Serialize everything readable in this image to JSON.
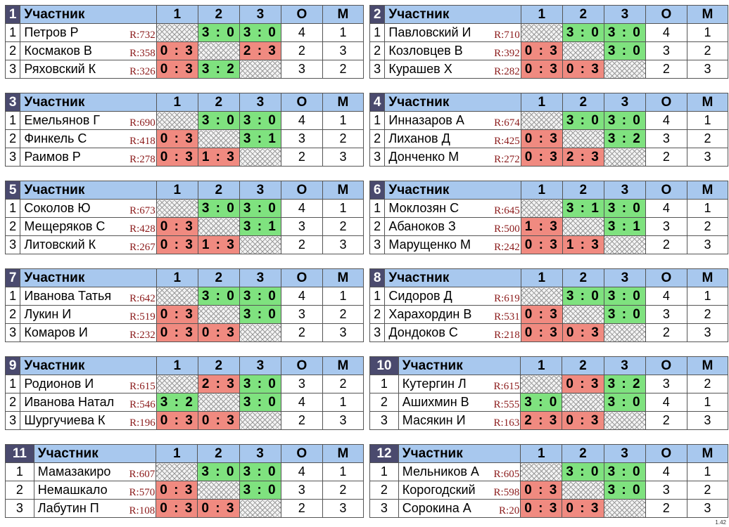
{
  "header": {
    "participant": "Участник",
    "cols": [
      "1",
      "2",
      "3"
    ],
    "points": "О",
    "place": "М"
  },
  "footer_tag": "1.42",
  "groups": [
    {
      "number": "1",
      "players": [
        {
          "idx": "1",
          "name": "Петров Р",
          "rating": "R:732",
          "scores": [
            "",
            "3 : 0",
            "3 : 0"
          ],
          "points": "4",
          "place": "1"
        },
        {
          "idx": "2",
          "name": "Космаков В",
          "rating": "R:358",
          "scores": [
            "0 : 3",
            "",
            "2 : 3"
          ],
          "points": "2",
          "place": "3"
        },
        {
          "idx": "3",
          "name": "Ряховский К",
          "rating": "R:326",
          "scores": [
            "0 : 3",
            "3 : 2",
            ""
          ],
          "points": "3",
          "place": "2"
        }
      ]
    },
    {
      "number": "2",
      "players": [
        {
          "idx": "1",
          "name": "Павловский И",
          "rating": "R:710",
          "scores": [
            "",
            "3 : 0",
            "3 : 0"
          ],
          "points": "4",
          "place": "1"
        },
        {
          "idx": "2",
          "name": "Козловцев В",
          "rating": "R:392",
          "scores": [
            "0 : 3",
            "",
            "3 : 0"
          ],
          "points": "3",
          "place": "2"
        },
        {
          "idx": "3",
          "name": "Курашев Х",
          "rating": "R:282",
          "scores": [
            "0 : 3",
            "0 : 3",
            ""
          ],
          "points": "2",
          "place": "3"
        }
      ]
    },
    {
      "number": "3",
      "players": [
        {
          "idx": "1",
          "name": "Емельянов Г",
          "rating": "R:690",
          "scores": [
            "",
            "3 : 0",
            "3 : 0"
          ],
          "points": "4",
          "place": "1"
        },
        {
          "idx": "2",
          "name": "Финкель С",
          "rating": "R:418",
          "scores": [
            "0 : 3",
            "",
            "3 : 1"
          ],
          "points": "3",
          "place": "2"
        },
        {
          "idx": "3",
          "name": "Раимов Р",
          "rating": "R:278",
          "scores": [
            "0 : 3",
            "1 : 3",
            ""
          ],
          "points": "2",
          "place": "3"
        }
      ]
    },
    {
      "number": "4",
      "players": [
        {
          "idx": "1",
          "name": "Инназаров А",
          "rating": "R:674",
          "scores": [
            "",
            "3 : 0",
            "3 : 0"
          ],
          "points": "4",
          "place": "1"
        },
        {
          "idx": "2",
          "name": "Лиханов Д",
          "rating": "R:425",
          "scores": [
            "0 : 3",
            "",
            "3 : 2"
          ],
          "points": "3",
          "place": "2"
        },
        {
          "idx": "3",
          "name": "Донченко М",
          "rating": "R:272",
          "scores": [
            "0 : 3",
            "2 : 3",
            ""
          ],
          "points": "2",
          "place": "3"
        }
      ]
    },
    {
      "number": "5",
      "players": [
        {
          "idx": "1",
          "name": "Соколов Ю",
          "rating": "R:673",
          "scores": [
            "",
            "3 : 0",
            "3 : 0"
          ],
          "points": "4",
          "place": "1"
        },
        {
          "idx": "2",
          "name": "Мещеряков С",
          "rating": "R:428",
          "scores": [
            "0 : 3",
            "",
            "3 : 1"
          ],
          "points": "3",
          "place": "2"
        },
        {
          "idx": "3",
          "name": "Литовский К",
          "rating": "R:267",
          "scores": [
            "0 : 3",
            "1 : 3",
            ""
          ],
          "points": "2",
          "place": "3"
        }
      ]
    },
    {
      "number": "6",
      "players": [
        {
          "idx": "1",
          "name": "Моклозян С",
          "rating": "R:645",
          "scores": [
            "",
            "3 : 1",
            "3 : 0"
          ],
          "points": "4",
          "place": "1"
        },
        {
          "idx": "2",
          "name": "Абаноков З",
          "rating": "R:500",
          "scores": [
            "1 : 3",
            "",
            "3 : 1"
          ],
          "points": "3",
          "place": "2"
        },
        {
          "idx": "3",
          "name": "Марущенко М",
          "rating": "R:242",
          "scores": [
            "0 : 3",
            "1 : 3",
            ""
          ],
          "points": "2",
          "place": "3"
        }
      ]
    },
    {
      "number": "7",
      "players": [
        {
          "idx": "1",
          "name": "Иванова Татья",
          "rating": "R:642",
          "scores": [
            "",
            "3 : 0",
            "3 : 0"
          ],
          "points": "4",
          "place": "1"
        },
        {
          "idx": "2",
          "name": "Лукин И",
          "rating": "R:519",
          "scores": [
            "0 : 3",
            "",
            "3 : 0"
          ],
          "points": "3",
          "place": "2"
        },
        {
          "idx": "3",
          "name": "Комаров И",
          "rating": "R:232",
          "scores": [
            "0 : 3",
            "0 : 3",
            ""
          ],
          "points": "2",
          "place": "3"
        }
      ]
    },
    {
      "number": "8",
      "players": [
        {
          "idx": "1",
          "name": "Сидоров Д",
          "rating": "R:619",
          "scores": [
            "",
            "3 : 0",
            "3 : 0"
          ],
          "points": "4",
          "place": "1"
        },
        {
          "idx": "2",
          "name": "Харахордин В",
          "rating": "R:531",
          "scores": [
            "0 : 3",
            "",
            "3 : 0"
          ],
          "points": "3",
          "place": "2"
        },
        {
          "idx": "3",
          "name": "Дондоков С",
          "rating": "R:218",
          "scores": [
            "0 : 3",
            "0 : 3",
            ""
          ],
          "points": "2",
          "place": "3"
        }
      ]
    },
    {
      "number": "9",
      "players": [
        {
          "idx": "1",
          "name": "Родионов И",
          "rating": "R:615",
          "scores": [
            "",
            "2 : 3",
            "3 : 0"
          ],
          "points": "3",
          "place": "2"
        },
        {
          "idx": "2",
          "name": "Иванова Натал",
          "rating": "R:546",
          "scores": [
            "3 : 2",
            "",
            "3 : 0"
          ],
          "points": "4",
          "place": "1"
        },
        {
          "idx": "3",
          "name": "Шургучиева К",
          "rating": "R:196",
          "scores": [
            "0 : 3",
            "0 : 3",
            ""
          ],
          "points": "2",
          "place": "3"
        }
      ]
    },
    {
      "number": "10",
      "players": [
        {
          "idx": "1",
          "name": "Кутергин Л",
          "rating": "R:615",
          "scores": [
            "",
            "0 : 3",
            "3 : 2"
          ],
          "points": "3",
          "place": "2"
        },
        {
          "idx": "2",
          "name": "Ашихмин В",
          "rating": "R:555",
          "scores": [
            "3 : 0",
            "",
            "3 : 0"
          ],
          "points": "4",
          "place": "1"
        },
        {
          "idx": "3",
          "name": "Масякин И",
          "rating": "R:163",
          "scores": [
            "2 : 3",
            "0 : 3",
            ""
          ],
          "points": "2",
          "place": "3"
        }
      ]
    },
    {
      "number": "11",
      "players": [
        {
          "idx": "1",
          "name": "Мамазакиро",
          "rating": "R:607",
          "scores": [
            "",
            "3 : 0",
            "3 : 0"
          ],
          "points": "4",
          "place": "1"
        },
        {
          "idx": "2",
          "name": "Немашкало",
          "rating": "R:570",
          "scores": [
            "0 : 3",
            "",
            "3 : 0"
          ],
          "points": "3",
          "place": "2"
        },
        {
          "idx": "3",
          "name": "Лабутин П",
          "rating": "R:108",
          "scores": [
            "0 : 3",
            "0 : 3",
            ""
          ],
          "points": "2",
          "place": "3"
        }
      ]
    },
    {
      "number": "12",
      "players": [
        {
          "idx": "1",
          "name": "Мельников А",
          "rating": "R:605",
          "scores": [
            "",
            "3 : 0",
            "3 : 0"
          ],
          "points": "4",
          "place": "1"
        },
        {
          "idx": "2",
          "name": "Корогодский",
          "rating": "R:598",
          "scores": [
            "0 : 3",
            "",
            "3 : 0"
          ],
          "points": "3",
          "place": "2"
        },
        {
          "idx": "3",
          "name": "Сорокина А",
          "rating": "R:20",
          "scores": [
            "0 : 3",
            "0 : 3",
            ""
          ],
          "points": "2",
          "place": "3"
        }
      ]
    }
  ]
}
